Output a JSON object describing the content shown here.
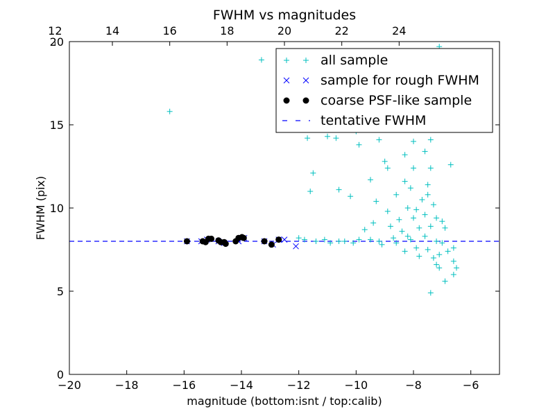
{
  "chart_data": {
    "type": "scatter",
    "title": "FWHM vs magnitudes",
    "xlabel": "magnitude (bottom:isnt / top:calib)",
    "ylabel": "FWHM (pix)",
    "xlim": [
      -20,
      -5
    ],
    "ylim": [
      0,
      20
    ],
    "x_ticks": [
      -20,
      -18,
      -16,
      -14,
      -12,
      -10,
      -8,
      -6
    ],
    "y_ticks": [
      0,
      5,
      10,
      15,
      20
    ],
    "top_axis": {
      "offset_from_bottom": 32.5,
      "ticks": [
        12,
        14,
        16,
        18,
        20,
        22,
        24
      ]
    },
    "legend_position": "top-right",
    "colors": {
      "all_sample": "#00bfbf",
      "rough_sample": "#0000ff",
      "psf_sample": "#000000",
      "tentative": "#0000ff"
    },
    "tentative_fwhm": 8.0,
    "series": [
      {
        "name": "all sample",
        "marker": "+",
        "points": [
          [
            -16.5,
            15.8
          ],
          [
            -13.3,
            18.9
          ],
          [
            -7.1,
            19.7
          ],
          [
            -11.7,
            14.2
          ],
          [
            -11.5,
            12.1
          ],
          [
            -11.6,
            11.0
          ],
          [
            -11.0,
            14.3
          ],
          [
            -10.7,
            14.2
          ],
          [
            -9.9,
            13.8
          ],
          [
            -10.6,
            11.1
          ],
          [
            -10.2,
            10.7
          ],
          [
            -9.5,
            11.7
          ],
          [
            -9.0,
            12.8
          ],
          [
            -8.9,
            12.4
          ],
          [
            -8.3,
            13.2
          ],
          [
            -8.0,
            14.0
          ],
          [
            -7.6,
            13.4
          ],
          [
            -7.4,
            12.4
          ],
          [
            -7.5,
            11.4
          ],
          [
            -8.3,
            11.6
          ],
          [
            -8.6,
            10.8
          ],
          [
            -8.2,
            10.0
          ],
          [
            -8.9,
            9.8
          ],
          [
            -8.5,
            9.3
          ],
          [
            -9.3,
            10.4
          ],
          [
            -9.4,
            9.1
          ],
          [
            -9.7,
            8.7
          ],
          [
            -8.4,
            8.6
          ],
          [
            -8.8,
            8.9
          ],
          [
            -7.8,
            8.8
          ],
          [
            -7.4,
            8.9
          ],
          [
            -7.2,
            9.4
          ],
          [
            -7.0,
            9.2
          ],
          [
            -7.3,
            10.2
          ],
          [
            -7.6,
            9.6
          ],
          [
            -7.9,
            9.9
          ],
          [
            -8.1,
            11.2
          ],
          [
            -6.9,
            8.8
          ],
          [
            -7.0,
            7.9
          ],
          [
            -6.6,
            7.6
          ],
          [
            -6.6,
            6.8
          ],
          [
            -7.1,
            6.4
          ],
          [
            -6.9,
            5.6
          ],
          [
            -7.8,
            7.1
          ],
          [
            -8.3,
            7.4
          ],
          [
            -8.6,
            7.9
          ],
          [
            -9.1,
            7.8
          ],
          [
            -9.5,
            8.1
          ],
          [
            -10.1,
            7.9
          ],
          [
            -10.6,
            8.0
          ],
          [
            -11.1,
            8.1
          ],
          [
            -11.4,
            8.0
          ],
          [
            -12.0,
            8.2
          ],
          [
            -11.8,
            8.1
          ],
          [
            -10.9,
            7.9
          ],
          [
            -10.4,
            8.0
          ],
          [
            -9.9,
            8.1
          ],
          [
            -9.2,
            8.0
          ],
          [
            -8.7,
            8.2
          ],
          [
            -8.1,
            8.1
          ],
          [
            -7.6,
            8.3
          ],
          [
            -7.2,
            8.0
          ],
          [
            -7.4,
            4.9
          ],
          [
            -6.6,
            6.0
          ],
          [
            -6.5,
            6.4
          ],
          [
            -6.7,
            12.6
          ],
          [
            -7.1,
            14.9
          ],
          [
            -7.4,
            14.1
          ],
          [
            -7.6,
            15.2
          ],
          [
            -8.8,
            15.5
          ],
          [
            -9.6,
            16.7
          ],
          [
            -8.2,
            17.6
          ],
          [
            -7.7,
            18.3
          ],
          [
            -7.9,
            16.1
          ],
          [
            -7.0,
            16.4
          ],
          [
            -7.3,
            17.1
          ],
          [
            -8.5,
            14.8
          ],
          [
            -9.2,
            14.1
          ],
          [
            -10.0,
            14.6
          ],
          [
            -8.0,
            12.4
          ],
          [
            -7.5,
            10.8
          ],
          [
            -7.7,
            10.5
          ],
          [
            -8.0,
            9.4
          ],
          [
            -8.2,
            8.3
          ],
          [
            -7.9,
            7.6
          ],
          [
            -7.5,
            7.5
          ],
          [
            -7.3,
            7.0
          ],
          [
            -7.1,
            7.2
          ],
          [
            -6.8,
            7.4
          ],
          [
            -7.2,
            6.6
          ]
        ]
      },
      {
        "name": "sample for rough FWHM",
        "marker": "x",
        "points": [
          [
            -15.9,
            8.0
          ],
          [
            -15.4,
            8.0
          ],
          [
            -15.2,
            8.1
          ],
          [
            -14.8,
            8.0
          ],
          [
            -14.6,
            7.9
          ],
          [
            -14.1,
            8.0
          ],
          [
            -13.9,
            8.2
          ],
          [
            -13.2,
            8.0
          ],
          [
            -12.9,
            7.8
          ],
          [
            -12.7,
            8.1
          ],
          [
            -12.5,
            8.1
          ],
          [
            -12.1,
            7.7
          ]
        ]
      },
      {
        "name": "coarse PSF-like sample",
        "marker": "o",
        "points": [
          [
            -15.9,
            8.0
          ],
          [
            -15.35,
            8.0
          ],
          [
            -15.25,
            7.95
          ],
          [
            -15.15,
            8.15
          ],
          [
            -15.05,
            8.15
          ],
          [
            -14.8,
            8.05
          ],
          [
            -14.72,
            7.95
          ],
          [
            -14.6,
            7.95
          ],
          [
            -14.55,
            7.85
          ],
          [
            -14.2,
            8.0
          ],
          [
            -14.1,
            8.2
          ],
          [
            -13.98,
            8.25
          ],
          [
            -13.92,
            8.2
          ],
          [
            -13.2,
            8.0
          ],
          [
            -12.95,
            7.8
          ],
          [
            -12.7,
            8.1
          ]
        ]
      }
    ]
  },
  "legend": {
    "items": [
      {
        "label": "all sample",
        "marker": "+"
      },
      {
        "label": "sample for rough FWHM",
        "marker": "x"
      },
      {
        "label": "coarse PSF-like sample",
        "marker": "o"
      },
      {
        "label": "tentative FWHM",
        "marker": "dash"
      }
    ]
  }
}
